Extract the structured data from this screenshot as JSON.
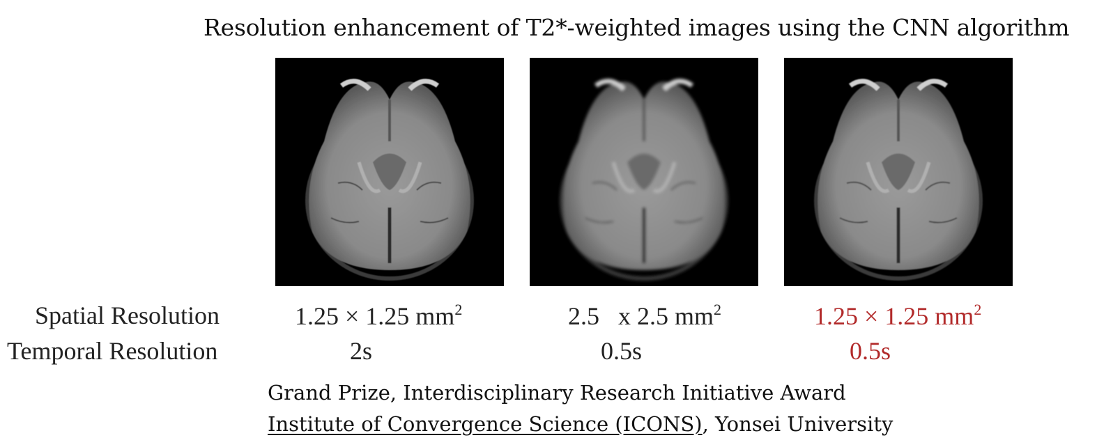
{
  "title": "Resolution enhancement of T2*-weighted images using the CNN algorithm",
  "images": [
    {
      "name": "mri-original",
      "blur": 0.6
    },
    {
      "name": "mri-low-res",
      "blur": 2.2
    },
    {
      "name": "mri-cnn-enhanced",
      "blur": 0.9
    }
  ],
  "rows": {
    "spatial_label": "Spatial Resolution",
    "temporal_label": "Temporal Resolution"
  },
  "spatial": [
    {
      "text": "1.25 × 1.25 mm",
      "sup": "2"
    },
    {
      "text": "2.5   x 2.5 mm",
      "sup": "2"
    },
    {
      "text": "1.25 × 1.25 mm",
      "sup": "2"
    }
  ],
  "temporal": [
    "2s",
    "0.5s",
    "0.5s"
  ],
  "highlight_color": "#b22a2a",
  "caption": {
    "line1": "Grand Prize, Interdisciplinary Research Initiative Award",
    "link": "Institute of Convergence Science (ICONS)",
    "line2_rest": ", Yonsei University"
  }
}
